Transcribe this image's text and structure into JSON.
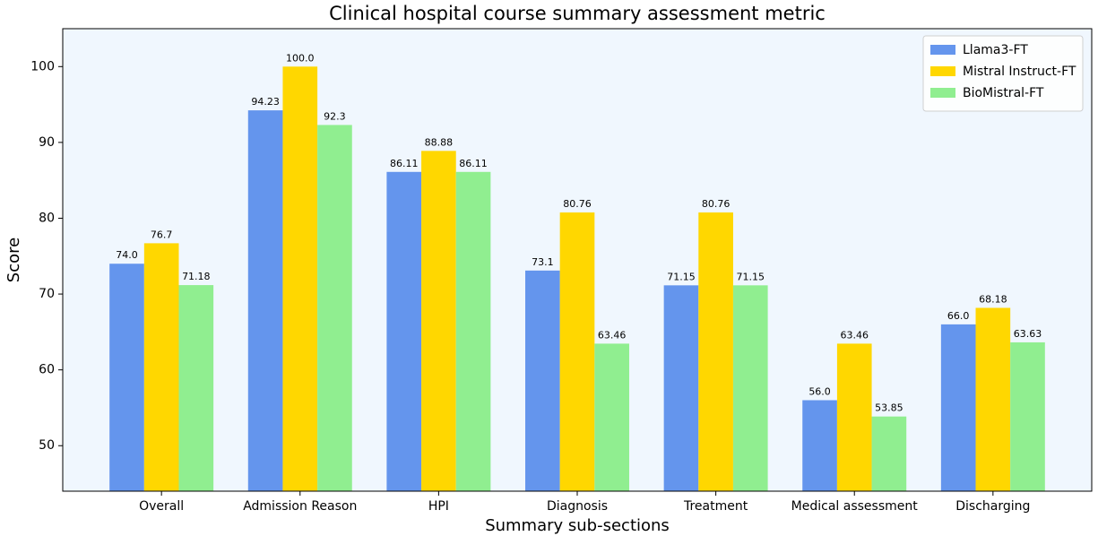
{
  "chart_data": {
    "type": "bar",
    "title": "Clinical hospital course summary assessment metric",
    "xlabel": "Summary sub-sections",
    "ylabel": "Score",
    "categories": [
      "Overall",
      "Admission Reason",
      "HPI",
      "Diagnosis",
      "Treatment",
      "Medical assessment",
      "Discharging"
    ],
    "series": [
      {
        "name": "Llama3-FT",
        "color": "#6495ed",
        "values": [
          74.0,
          94.23,
          86.11,
          73.1,
          71.15,
          56.0,
          66.0
        ],
        "value_labels": [
          "74.0",
          "94.23",
          "86.11",
          "73.1",
          "71.15",
          "56.0",
          "66.0"
        ]
      },
      {
        "name": "Mistral Instruct-FT",
        "color": "#ffd700",
        "values": [
          76.7,
          100.0,
          88.88,
          80.76,
          80.76,
          63.46,
          68.18
        ],
        "value_labels": [
          "76.7",
          "100.0",
          "88.88",
          "80.76",
          "80.76",
          "63.46",
          "68.18"
        ]
      },
      {
        "name": "BioMistral-FT",
        "color": "#90ee90",
        "values": [
          71.18,
          92.3,
          86.11,
          63.46,
          71.15,
          53.85,
          63.63
        ],
        "value_labels": [
          "71.18",
          "92.3",
          "86.11",
          "63.46",
          "71.15",
          "53.85",
          "63.63"
        ]
      }
    ],
    "ylim": [
      44,
      105
    ],
    "yticks": [
      50,
      60,
      70,
      80,
      90,
      100
    ],
    "legend": "upper right",
    "grid": false
  }
}
